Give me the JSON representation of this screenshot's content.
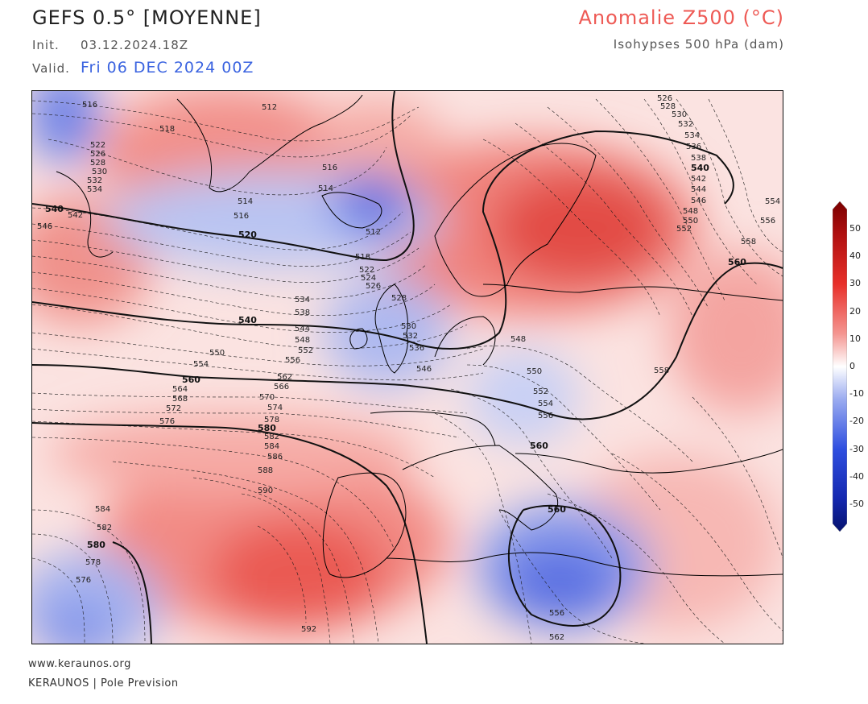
{
  "header": {
    "model": "GEFS 0.5° [MOYENNE]",
    "init_label": "Init.",
    "init_value": "03.12.2024.18Z",
    "valid_label": "Valid.",
    "valid_value": "Fri 06 DEC 2024 00Z",
    "anomaly_title": "Anomalie Z500 (°C)",
    "isohypses_title": "Isohypses 500 hPa (dam)"
  },
  "colorbar": {
    "ticks": [
      "50",
      "40",
      "30",
      "20",
      "10",
      "0",
      "-10",
      "-20",
      "-30",
      "-40",
      "-50"
    ],
    "colors": {
      "max": "#8b0000",
      "warm": "#e8302a",
      "neutral": "#ffffff",
      "cold": "#2f4fe0",
      "min": "#0a1a8c"
    }
  },
  "map": {
    "contour_labels": {
      "c516a": "516",
      "c512": "512",
      "c518a": "518",
      "c522a": "522",
      "c526a": "526",
      "c528a": "528",
      "c530a": "530",
      "c532a": "532",
      "c534a": "534",
      "c540a": "540",
      "c542a": "542",
      "c546a": "546",
      "c514a": "514",
      "c514b": "514",
      "c516b": "516",
      "c516c": "516",
      "c520": "520",
      "c512b": "512",
      "c518b": "518",
      "c522b": "522",
      "c524": "524",
      "c526b": "526",
      "c528b": "528",
      "c534b": "534",
      "c538": "538",
      "c540b": "540",
      "c544": "544",
      "c548": "548",
      "c552": "552",
      "c550": "550",
      "c554": "554",
      "c556a": "556",
      "c560a": "560",
      "c562": "562",
      "c564": "564",
      "c566": "566",
      "c568": "568",
      "c570": "570",
      "c572": "572",
      "c574": "574",
      "c576a": "576",
      "c578": "578",
      "c580a": "580",
      "c582a": "582",
      "c584a": "584",
      "c586": "586",
      "c588": "588",
      "c590": "590",
      "c584b": "584",
      "c582b": "582",
      "c580b": "580",
      "c578b": "578",
      "c576b": "576",
      "c592": "592",
      "c530b": "530",
      "c532b": "532",
      "c536a": "536",
      "c546b": "546",
      "c548b": "548",
      "c550b": "550",
      "c552b": "552",
      "c554b": "554",
      "c556b": "556",
      "c560b": "560",
      "c558a": "558",
      "c560c": "560",
      "c556c": "556",
      "c562b": "562",
      "c526c": "526",
      "c528c": "528",
      "c530c": "530",
      "c532c": "532",
      "c534c": "534",
      "c536c": "536",
      "c538c": "538",
      "c540c": "540",
      "c542c": "542",
      "c544c": "544",
      "c546c": "546",
      "c548c": "548",
      "c550c": "550",
      "c552c": "552",
      "c554c": "554",
      "c556d": "556",
      "c558b": "558",
      "c560d": "560",
      "c558c": "558"
    }
  },
  "footer": {
    "website": "www.keraunos.org",
    "credit": "KERAUNOS | Pole Prevision"
  }
}
